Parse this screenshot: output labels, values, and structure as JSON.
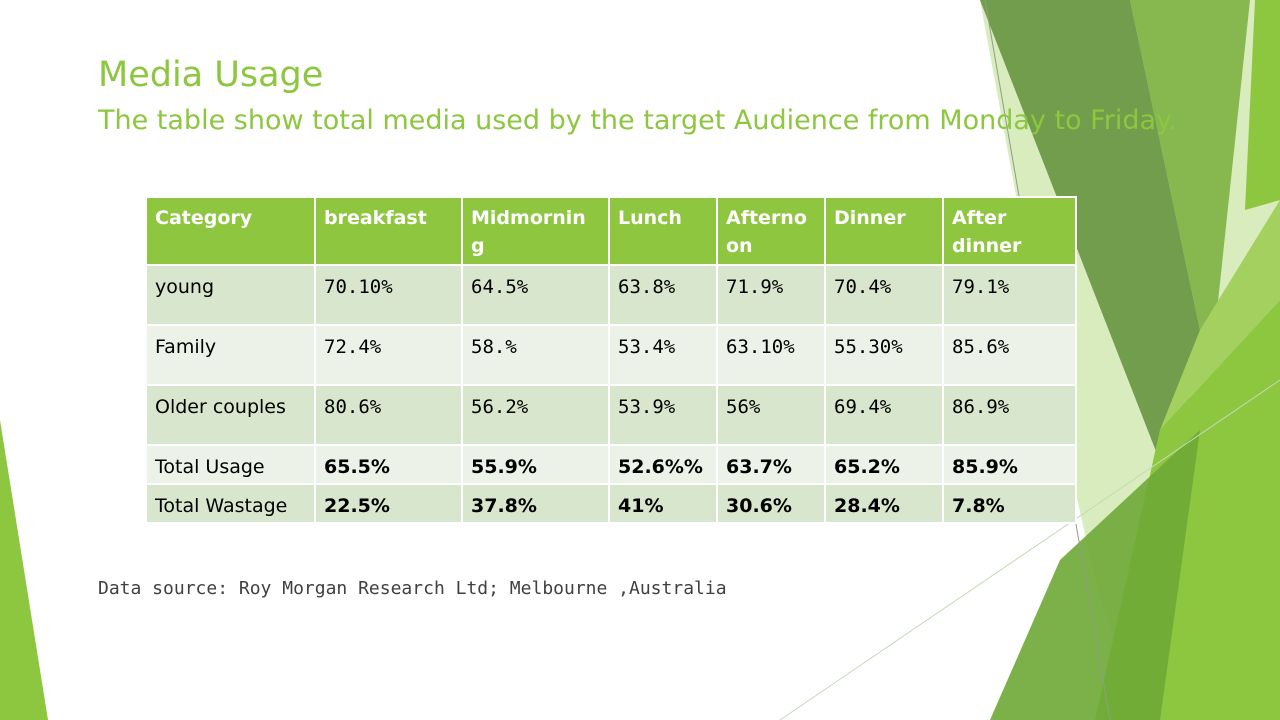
{
  "title": "Media Usage",
  "subtitle": "The table show total media used by the target Audience from Monday to Friday.",
  "colors": {
    "accent": "#8dc63f",
    "header_bg": "#8ec63f",
    "row_odd": "#d7e6cc",
    "row_even": "#ecf2e7"
  },
  "table": {
    "headers": [
      "Category",
      "breakfast",
      "Midmornin g",
      "Lunch",
      "Afterno on",
      "Dinner",
      "After dinner"
    ],
    "rows": [
      {
        "category": "young",
        "values": [
          "70.10%",
          "64.5%",
          "63.8%",
          "71.9%",
          "70.4%",
          "79.1%"
        ]
      },
      {
        "category": "Family",
        "values": [
          "72.4%",
          "58.%",
          "53.4%",
          "63.10%",
          "55.30%",
          "85.6%"
        ]
      },
      {
        "category": "Older couples",
        "values": [
          "80.6%",
          "56.2%",
          "53.9%",
          "56%",
          "69.4%",
          "86.9%"
        ]
      },
      {
        "category": "Total Usage",
        "values": [
          "65.5%",
          "55.9%",
          "52.6%%",
          "63.7%",
          "65.2%",
          "85.9%"
        ]
      },
      {
        "category": "Total Wastage",
        "values": [
          "22.5%",
          "37.8%",
          "41%",
          "30.6%",
          "28.4%",
          "7.8%"
        ]
      }
    ]
  },
  "source": "Data source: Roy Morgan Research Ltd; Melbourne ,Australia"
}
